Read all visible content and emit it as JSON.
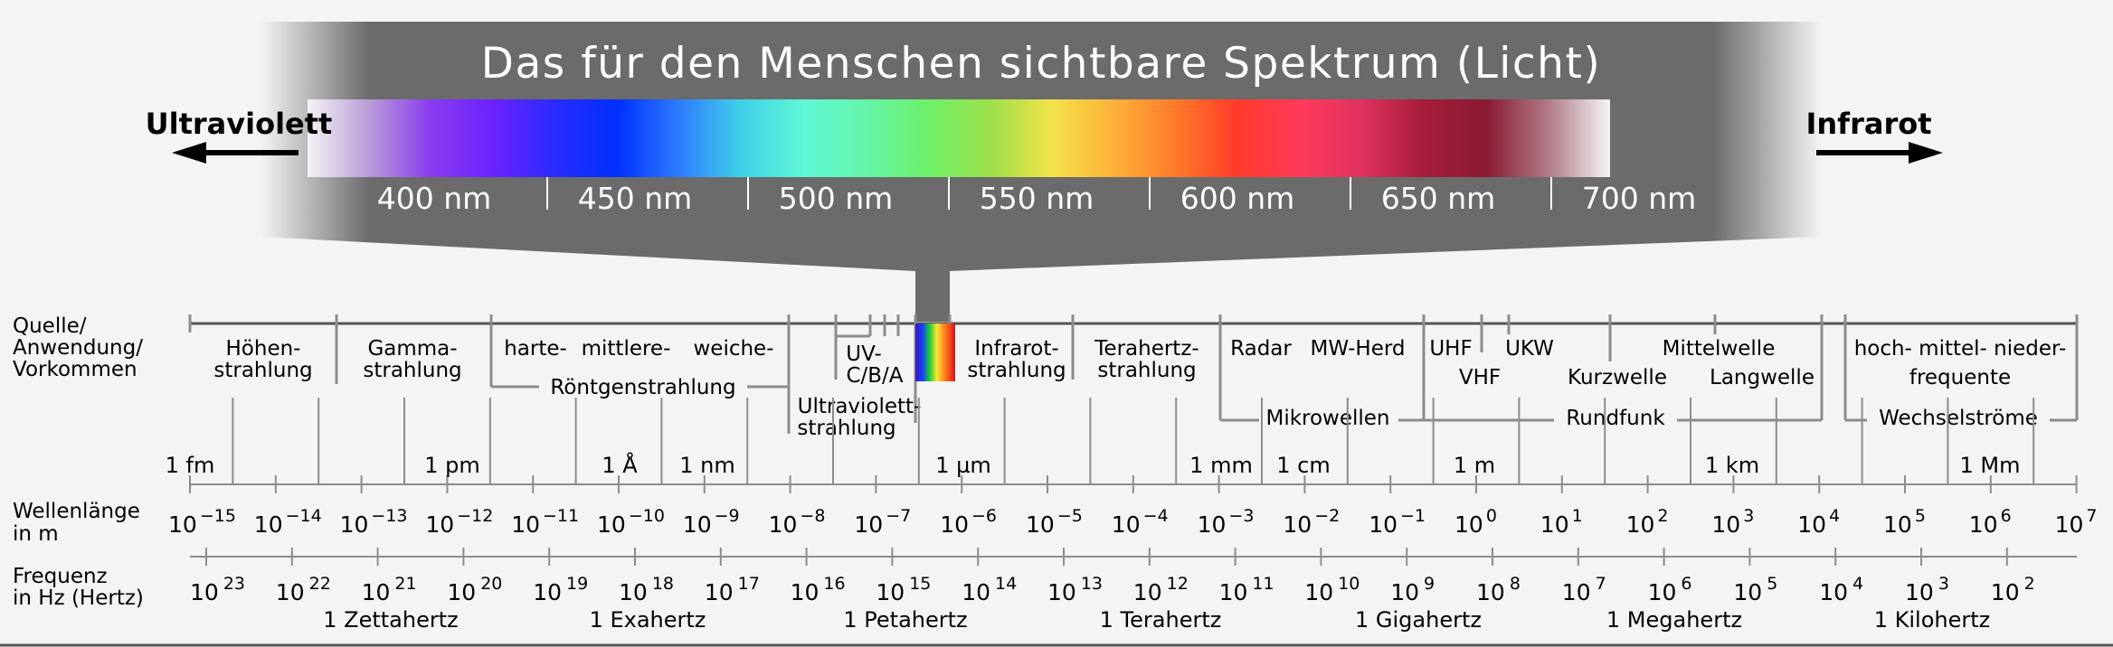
{
  "header": {
    "title": "Das für den Menschen sichtbare Spektrum (Licht)",
    "left_label": "Ultraviolett",
    "right_label": "Infrarot",
    "nm_ticks": [
      {
        "label": "400 nm"
      },
      {
        "label": "450 nm"
      },
      {
        "label": "500 nm"
      },
      {
        "label": "550 nm"
      },
      {
        "label": "600 nm"
      },
      {
        "label": "650 nm"
      },
      {
        "label": "700 nm"
      }
    ],
    "colors": {
      "band": "#6b6b6b",
      "text": "#ffffff",
      "spectrum_stops": [
        "#f4f4f4",
        "#b79ad8",
        "#8a3cf0",
        "#6b22ff",
        "#2a2bff",
        "#0030ff",
        "#2f7dff",
        "#3fd0e8",
        "#5ff7d6",
        "#64f5a8",
        "#6ef06a",
        "#9ce04a",
        "#f2e24a",
        "#ffb23a",
        "#ff7a2a",
        "#ff3a2a",
        "#ff3a5a",
        "#e0315f",
        "#a51c3a",
        "#8a1a34",
        "#b07a86",
        "#f4f4f4"
      ]
    }
  },
  "section_labels": {
    "source": [
      "Quelle/",
      "Anwendung/",
      "Vorkommen"
    ],
    "wavelength": [
      "Wellenlänge",
      "in m"
    ],
    "frequency": [
      "Frequenz",
      "in Hz (Hertz)"
    ]
  },
  "source_labels": {
    "hoehen": [
      "Höhen-",
      "strahlung"
    ],
    "gamma": [
      "Gamma-",
      "strahlung"
    ],
    "harte": "harte-",
    "mittlere": "mittlere-",
    "weiche": "weiche-",
    "roentgen": "Röntgenstrahlung",
    "uv_cba": [
      "UV-",
      "C/B/A"
    ],
    "ultraviolett": [
      "Ultraviolett-",
      "strahlung"
    ],
    "infrarot": [
      "Infrarot-",
      "strahlung"
    ],
    "terahertz": [
      "Terahertz-",
      "strahlung"
    ],
    "radar": "Radar",
    "mw_herd": "MW-Herd",
    "mikrowellen": "Mikrowellen",
    "uhf": "UHF",
    "vhf": "VHF",
    "ukw": "UKW",
    "kurzwelle": "Kurzwelle",
    "mittelwelle": "Mittelwelle",
    "langwelle": "Langwelle",
    "rundfunk": "Rundfunk",
    "hoch_mittel_nieder": "hoch- mittel- nieder-",
    "frequente": "frequente",
    "wechselstroeme": "Wechselströme"
  },
  "unit_labels": [
    "1 fm",
    "1 pm",
    "1 Å",
    "1 nm",
    "1 µm",
    "1 mm",
    "1 cm",
    "1 m",
    "1 km",
    "1 Mm"
  ],
  "wavelength_exponents": [
    {
      "base": "10",
      "exp": "−15"
    },
    {
      "base": "10",
      "exp": "−14"
    },
    {
      "base": "10",
      "exp": "−13"
    },
    {
      "base": "10",
      "exp": "−12"
    },
    {
      "base": "10",
      "exp": "−11"
    },
    {
      "base": "10",
      "exp": "−10"
    },
    {
      "base": "10",
      "exp": "−9"
    },
    {
      "base": "10",
      "exp": "−8"
    },
    {
      "base": "10",
      "exp": "−7"
    },
    {
      "base": "10",
      "exp": "−6"
    },
    {
      "base": "10",
      "exp": "−5"
    },
    {
      "base": "10",
      "exp": "−4"
    },
    {
      "base": "10",
      "exp": "−3"
    },
    {
      "base": "10",
      "exp": "−2"
    },
    {
      "base": "10",
      "exp": "−1"
    },
    {
      "base": "10",
      "exp": "0"
    },
    {
      "base": "10",
      "exp": "1"
    },
    {
      "base": "10",
      "exp": "2"
    },
    {
      "base": "10",
      "exp": "3"
    },
    {
      "base": "10",
      "exp": "4"
    },
    {
      "base": "10",
      "exp": "5"
    },
    {
      "base": "10",
      "exp": "6"
    },
    {
      "base": "10",
      "exp": "7"
    }
  ],
  "frequency_exponents": [
    {
      "base": "10",
      "exp": "23"
    },
    {
      "base": "10",
      "exp": "22"
    },
    {
      "base": "10",
      "exp": "21"
    },
    {
      "base": "10",
      "exp": "20"
    },
    {
      "base": "10",
      "exp": "19"
    },
    {
      "base": "10",
      "exp": "18"
    },
    {
      "base": "10",
      "exp": "17"
    },
    {
      "base": "10",
      "exp": "16"
    },
    {
      "base": "10",
      "exp": "15"
    },
    {
      "base": "10",
      "exp": "14"
    },
    {
      "base": "10",
      "exp": "13"
    },
    {
      "base": "10",
      "exp": "12"
    },
    {
      "base": "10",
      "exp": "11"
    },
    {
      "base": "10",
      "exp": "10"
    },
    {
      "base": "10",
      "exp": "9"
    },
    {
      "base": "10",
      "exp": "8"
    },
    {
      "base": "10",
      "exp": "7"
    },
    {
      "base": "10",
      "exp": "6"
    },
    {
      "base": "10",
      "exp": "5"
    },
    {
      "base": "10",
      "exp": "4"
    },
    {
      "base": "10",
      "exp": "3"
    },
    {
      "base": "10",
      "exp": "2"
    }
  ],
  "frequency_units": [
    "1 Zettahertz",
    "1 Exahertz",
    "1 Petahertz",
    "1 Terahertz",
    "1 Gigahertz",
    "1 Megahertz",
    "1 Kilohertz"
  ],
  "diagram_colors": {
    "line": "#8c8c8c",
    "axis": "#555555",
    "text": "#000000",
    "background": "#f4f4f4"
  }
}
